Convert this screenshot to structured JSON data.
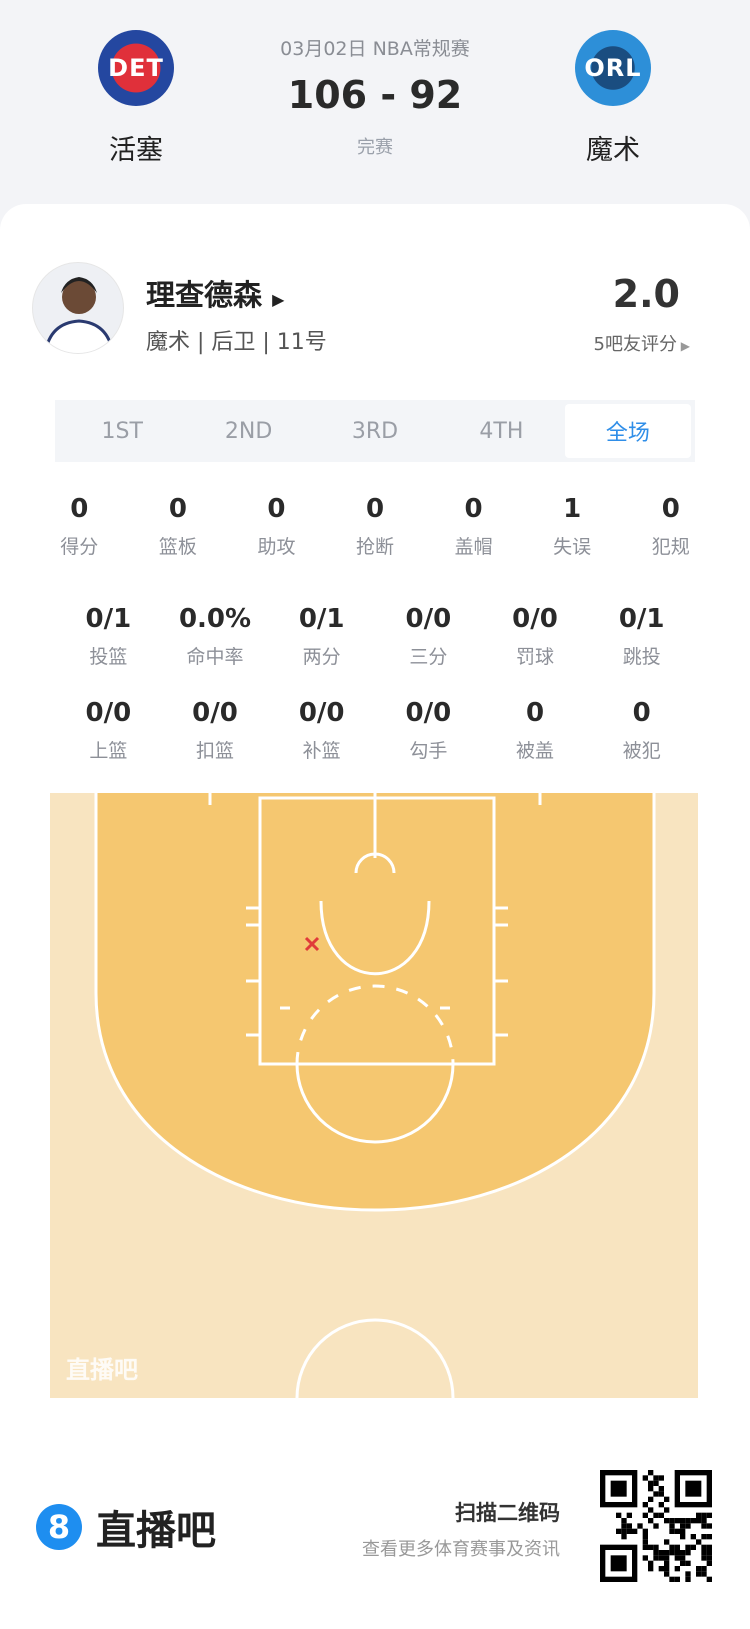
{
  "game": {
    "date_league": "03月02日 NBA常规赛",
    "score": "106 - 92",
    "status": "完赛",
    "home": {
      "abbr": "DET",
      "name": "活塞",
      "color": "#c8102e"
    },
    "away": {
      "abbr": "ORL",
      "name": "魔术",
      "color": "#0077c0"
    }
  },
  "player": {
    "name": "理查德森",
    "info": "魔术 | 后卫 | 11号",
    "rating": "2.0",
    "rating_link": "5吧友评分"
  },
  "tabs": [
    {
      "label": "1ST",
      "active": false
    },
    {
      "label": "2ND",
      "active": false
    },
    {
      "label": "3RD",
      "active": false
    },
    {
      "label": "4TH",
      "active": false
    },
    {
      "label": "全场",
      "active": true
    }
  ],
  "stats_rows": [
    [
      {
        "v": "0",
        "l": "得分"
      },
      {
        "v": "0",
        "l": "篮板"
      },
      {
        "v": "0",
        "l": "助攻"
      },
      {
        "v": "0",
        "l": "抢断"
      },
      {
        "v": "0",
        "l": "盖帽"
      },
      {
        "v": "1",
        "l": "失误"
      },
      {
        "v": "0",
        "l": "犯规"
      }
    ],
    [
      {
        "v": "0/1",
        "l": "投篮"
      },
      {
        "v": "0.0%",
        "l": "命中率"
      },
      {
        "v": "0/1",
        "l": "两分"
      },
      {
        "v": "0/0",
        "l": "三分"
      },
      {
        "v": "0/0",
        "l": "罚球"
      },
      {
        "v": "0/1",
        "l": "跳投"
      }
    ],
    [
      {
        "v": "0/0",
        "l": "上篮"
      },
      {
        "v": "0/0",
        "l": "扣篮"
      },
      {
        "v": "0/0",
        "l": "补篮"
      },
      {
        "v": "0/0",
        "l": "勾手"
      },
      {
        "v": "0",
        "l": "被盖"
      },
      {
        "v": "0",
        "l": "被犯"
      }
    ]
  ],
  "court": {
    "watermark": "直播吧",
    "shots": [
      {
        "result": "miss",
        "marker": "x",
        "color": "#e03a3a"
      }
    ],
    "colors": {
      "outer": "#f8e4c0",
      "inner": "#f5c770"
    }
  },
  "footer": {
    "logo_digit": "8",
    "brand": "直播吧",
    "scan_title": "扫描二维码",
    "scan_sub": "查看更多体育赛事及资讯"
  }
}
